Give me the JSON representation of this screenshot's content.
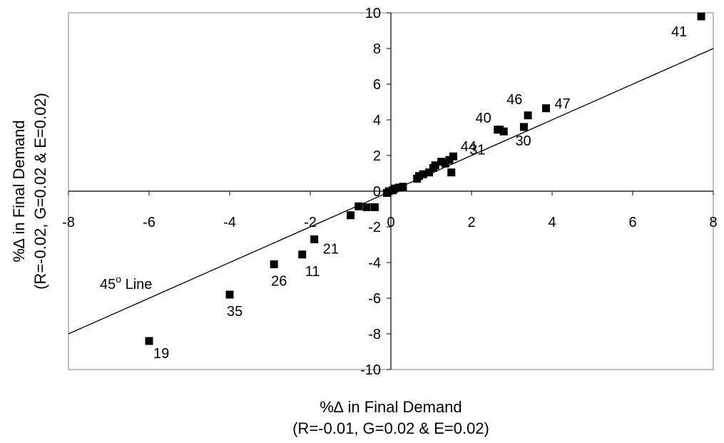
{
  "chart_data": {
    "type": "scatter",
    "xlabel_line1": "%∆ in Final Demand",
    "xlabel_line2": "(R=-0.01, G=0.02 & E=0.02)",
    "ylabel_line1": "%∆ in Final Demand",
    "ylabel_line2": "(R=-0.02, G=0.02 & E=0.02)",
    "xlim": [
      -8,
      8
    ],
    "ylim": [
      -10,
      10
    ],
    "x_ticks": [
      -8,
      -6,
      -4,
      -2,
      0,
      2,
      4,
      6,
      8
    ],
    "y_ticks": [
      -10,
      -8,
      -6,
      -4,
      -2,
      0,
      2,
      4,
      6,
      8,
      10
    ],
    "grid": false,
    "marker": "square",
    "reference_line": {
      "label": "45",
      "label_sup": "o",
      "label_suffix": " Line",
      "slope": 1,
      "intercept": 0
    },
    "points": [
      {
        "x": 7.7,
        "y": 9.8,
        "label": "41"
      },
      {
        "x": 3.85,
        "y": 4.65,
        "label": "47"
      },
      {
        "x": 3.4,
        "y": 4.25,
        "label": "46"
      },
      {
        "x": 3.3,
        "y": 3.6,
        "label": "30"
      },
      {
        "x": 2.8,
        "y": 3.35,
        "label": "31"
      },
      {
        "x": 2.7,
        "y": 3.45,
        "label": "40"
      },
      {
        "x": 2.65,
        "y": 3.45,
        "label": "44"
      },
      {
        "x": 1.5,
        "y": 1.05,
        "label": ""
      },
      {
        "x": 1.55,
        "y": 1.95,
        "label": ""
      },
      {
        "x": 1.45,
        "y": 1.75,
        "label": ""
      },
      {
        "x": 1.35,
        "y": 1.55,
        "label": ""
      },
      {
        "x": 1.25,
        "y": 1.65,
        "label": ""
      },
      {
        "x": 1.1,
        "y": 1.45,
        "label": ""
      },
      {
        "x": 1.05,
        "y": 1.3,
        "label": ""
      },
      {
        "x": 0.95,
        "y": 1.05,
        "label": ""
      },
      {
        "x": 0.8,
        "y": 0.95,
        "label": ""
      },
      {
        "x": 0.7,
        "y": 0.85,
        "label": ""
      },
      {
        "x": 0.65,
        "y": 0.7,
        "label": ""
      },
      {
        "x": 0.3,
        "y": 0.25,
        "label": ""
      },
      {
        "x": 0.2,
        "y": 0.2,
        "label": ""
      },
      {
        "x": 0.1,
        "y": 0.15,
        "label": ""
      },
      {
        "x": 0.05,
        "y": 0.05,
        "label": ""
      },
      {
        "x": -0.05,
        "y": 0.0,
        "label": ""
      },
      {
        "x": -0.1,
        "y": -0.1,
        "label": ""
      },
      {
        "x": -0.4,
        "y": -0.9,
        "label": ""
      },
      {
        "x": -0.6,
        "y": -0.9,
        "label": ""
      },
      {
        "x": -0.8,
        "y": -0.85,
        "label": ""
      },
      {
        "x": -1.0,
        "y": -1.35,
        "label": ""
      },
      {
        "x": -1.9,
        "y": -2.7,
        "label": "21"
      },
      {
        "x": -2.2,
        "y": -3.55,
        "label": "11"
      },
      {
        "x": -2.9,
        "y": -4.1,
        "label": "26"
      },
      {
        "x": -4.0,
        "y": -5.8,
        "label": "35"
      },
      {
        "x": -6.0,
        "y": -8.4,
        "label": "19"
      }
    ]
  }
}
